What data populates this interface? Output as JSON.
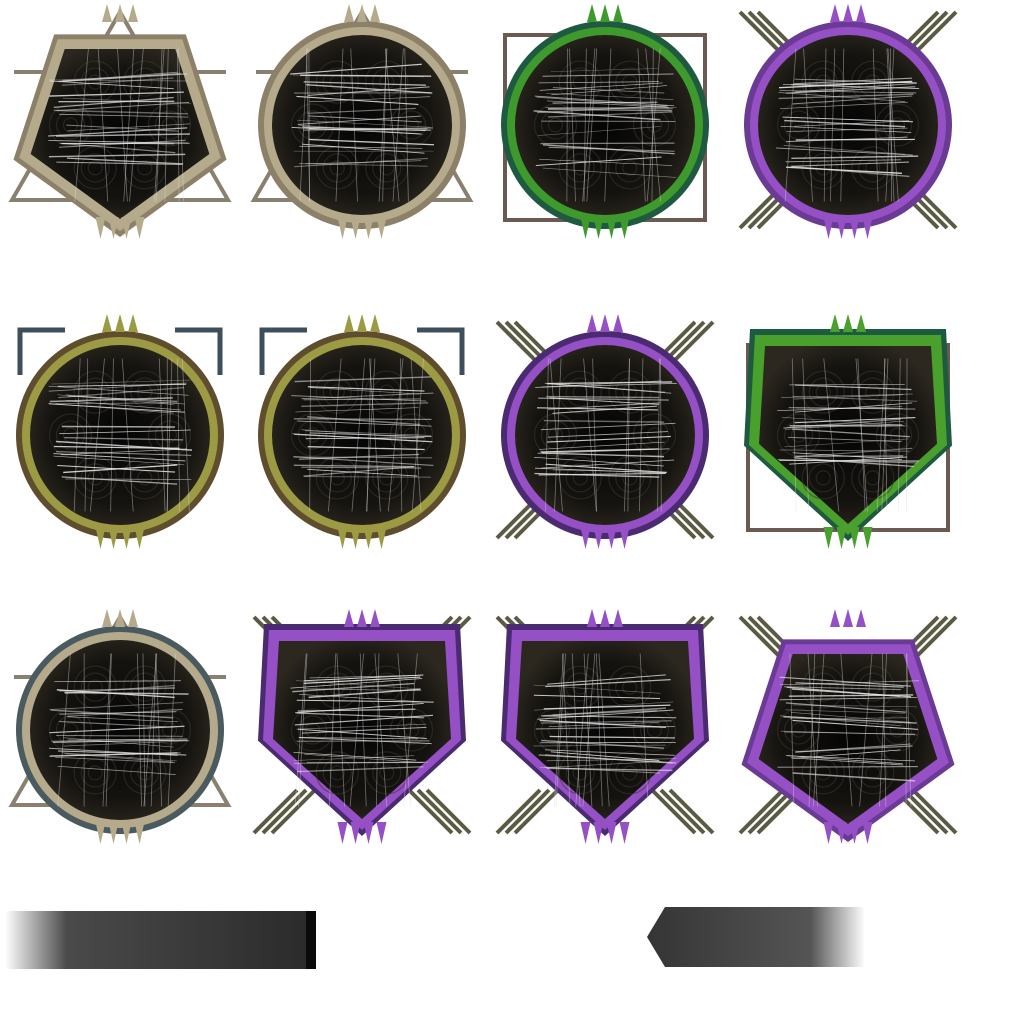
{
  "sheet": {
    "background": "#ffffff",
    "frames": [
      {
        "name": "frame-pentagon-tan-triangle",
        "shape": "pentagon",
        "rim": "#b5aa8c",
        "rim_dark": "#8c8068",
        "deco": "triangle",
        "deco_color": "#8a8070"
      },
      {
        "name": "frame-circle-tan-triangle",
        "shape": "circle",
        "rim": "#b5aa8c",
        "rim_dark": "#8c8068",
        "deco": "triangle",
        "deco_color": "#8a8070"
      },
      {
        "name": "frame-circle-green-square",
        "shape": "circle",
        "rim": "#3e9a2c",
        "rim_dark": "#1e5a40",
        "deco": "square",
        "deco_color": "#6b5a52"
      },
      {
        "name": "frame-circle-purple-stripes",
        "shape": "circle",
        "rim": "#9450c4",
        "rim_dark": "#6a3a94",
        "deco": "stripes",
        "deco_color": "#5b5b44"
      },
      {
        "name": "frame-circle-olive-brackets-a",
        "shape": "circle",
        "rim": "#9c9a42",
        "rim_dark": "#5e4e2e",
        "deco": "brackets",
        "deco_color": "#3e4e5a"
      },
      {
        "name": "frame-circle-olive-brackets-b",
        "shape": "circle",
        "rim": "#9c9a42",
        "rim_dark": "#5e4e2e",
        "deco": "brackets",
        "deco_color": "#3e4e5a"
      },
      {
        "name": "frame-circle-purple-stripes-dark",
        "shape": "circle",
        "rim": "#9450c4",
        "rim_dark": "#4a2a70",
        "deco": "stripes",
        "deco_color": "#5b5b44"
      },
      {
        "name": "frame-shield-green-square",
        "shape": "shield",
        "rim": "#4aa02c",
        "rim_dark": "#1e5a40",
        "deco": "square",
        "deco_color": "#6b5a52"
      },
      {
        "name": "frame-circle-tan-slate",
        "shape": "circle",
        "rim": "#b5aa8c",
        "rim_dark": "#4a5a5e",
        "deco": "triangle",
        "deco_color": "#8a8070"
      },
      {
        "name": "frame-shield-purple-a",
        "shape": "shield",
        "rim": "#9450c4",
        "rim_dark": "#4a2a70",
        "deco": "stripes",
        "deco_color": "#5b5b44"
      },
      {
        "name": "frame-shield-purple-b",
        "shape": "shield",
        "rim": "#9450c4",
        "rim_dark": "#4a2a70",
        "deco": "stripes",
        "deco_color": "#5b5b44"
      },
      {
        "name": "frame-pentagon-purple",
        "shape": "pentagon",
        "rim": "#9450c4",
        "rim_dark": "#6a3a94",
        "deco": "stripes",
        "deco_color": "#5b5b44"
      }
    ],
    "bars": [
      {
        "name": "ink-bar-left",
        "color": "#2a2a2a"
      },
      {
        "name": "ink-bar-right-arrow",
        "color": "#2a2a2a"
      }
    ]
  }
}
